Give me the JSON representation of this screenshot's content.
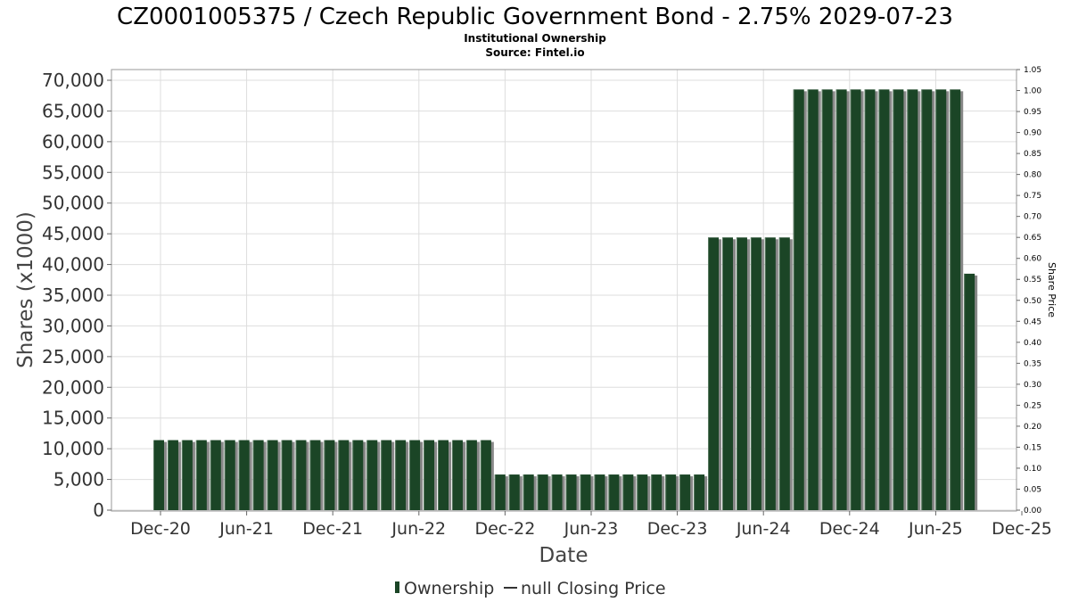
{
  "chart_data": {
    "type": "bar",
    "title": "CZ0001005375 / Czech Republic Government Bond - 2.75% 2029-07-23",
    "subtitle_lines": [
      "Institutional Ownership",
      "Source: Fintel.io"
    ],
    "xlabel": "Date",
    "ylabel": "Shares (x1000)",
    "y2label": "Share Price",
    "ylim": [
      0,
      72000
    ],
    "y2lim": [
      0,
      1.05
    ],
    "yticks": [
      "0",
      "5,000",
      "10,000",
      "15,000",
      "20,000",
      "25,000",
      "30,000",
      "35,000",
      "40,000",
      "45,000",
      "50,000",
      "55,000",
      "60,000",
      "65,000",
      "70,000"
    ],
    "y2ticks": [
      "0.00",
      "0.05",
      "0.10",
      "0.15",
      "0.20",
      "0.25",
      "0.30",
      "0.35",
      "0.40",
      "0.45",
      "0.50",
      "0.55",
      "0.60",
      "0.65",
      "0.70",
      "0.75",
      "0.80",
      "0.85",
      "0.90",
      "0.95",
      "1.00",
      "1.05"
    ],
    "xticks": [
      "Dec-20",
      "Jun-21",
      "Dec-21",
      "Jun-22",
      "Dec-22",
      "Jun-23",
      "Dec-23",
      "Jun-24",
      "Dec-24",
      "Jun-25",
      "Dec-25"
    ],
    "grid": true,
    "legend_position": "bottom",
    "legend": [
      "Ownership",
      "null Closing Price"
    ],
    "colors": {
      "bar": "#1b4526",
      "bar_shadow": "#888888",
      "gridline": "#dddddd"
    },
    "series": [
      {
        "name": "Ownership",
        "values": [
          11400,
          11400,
          11400,
          11400,
          11400,
          11400,
          11400,
          11400,
          11400,
          11400,
          11400,
          11400,
          11400,
          11400,
          11400,
          11400,
          11400,
          11400,
          11400,
          11400,
          11400,
          11400,
          11400,
          11400,
          5800,
          5800,
          5800,
          5800,
          5800,
          5800,
          5800,
          5800,
          5800,
          5800,
          5800,
          5800,
          5800,
          5800,
          5800,
          44400,
          44400,
          44400,
          44400,
          44400,
          44400,
          68500,
          68500,
          68500,
          68500,
          68500,
          68500,
          68500,
          68500,
          68500,
          68500,
          68500,
          68500,
          38500
        ]
      }
    ]
  }
}
